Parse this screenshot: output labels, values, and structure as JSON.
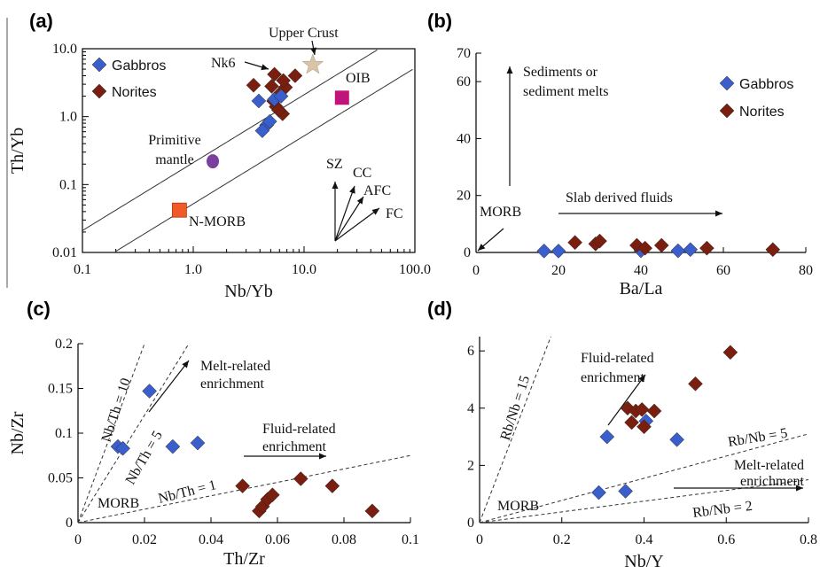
{
  "colors": {
    "gabbros": "#3a5fcd",
    "norites": "#7a1f0f",
    "primitive_mantle": "#7b3fa0",
    "nmorb": "#f05a28",
    "oib": "#c0147a",
    "upper_crust": "#d8c4a8"
  },
  "chart_data": [
    {
      "panel": "(a)",
      "type": "scatter",
      "scale": "log-log",
      "xlabel": "Nb/Yb",
      "ylabel": "Th/Yb",
      "xlim": [
        0.1,
        100
      ],
      "ylim": [
        0.01,
        10
      ],
      "xticks": [
        "0.1",
        "1.0",
        "10.0",
        "100.0"
      ],
      "yticks": [
        "0.01",
        "0.1",
        "1.0",
        "10.0"
      ],
      "legend": [
        "Gabbros",
        "Norites"
      ],
      "series": [
        {
          "name": "Gabbros",
          "points": [
            [
              3.9,
              1.7
            ],
            [
              5.4,
              1.8
            ],
            [
              6.2,
              2.0
            ],
            [
              4.6,
              0.75
            ],
            [
              4.9,
              0.85
            ],
            [
              4.2,
              0.62
            ]
          ]
        },
        {
          "name": "Norites",
          "points": [
            [
              5.4,
              4.2
            ],
            [
              3.5,
              2.9
            ],
            [
              5.1,
              2.8
            ],
            [
              6.8,
              2.7
            ],
            [
              8.3,
              4.0
            ],
            [
              5.9,
              2.1
            ],
            [
              5.3,
              1.7
            ],
            [
              5.6,
              1.4
            ],
            [
              6.4,
              1.1
            ],
            [
              5.9,
              1.25
            ],
            [
              6.5,
              3.4
            ]
          ]
        }
      ],
      "references": [
        {
          "label": "Primitive\nmantle",
          "x": 1.5,
          "y": 0.22
        },
        {
          "label": "N-MORB",
          "x": 0.75,
          "y": 0.042
        },
        {
          "label": "OIB",
          "x": 22,
          "y": 1.9
        },
        {
          "label": "Upper Crust",
          "x": 12,
          "y": 5.8
        }
      ],
      "annotations": [
        "Nk6",
        "SZ",
        "CC",
        "AFC",
        "FC"
      ]
    },
    {
      "panel": "(b)",
      "type": "scatter",
      "xlabel": "Ba/La",
      "ylabel": "",
      "xlim": [
        0,
        80
      ],
      "ylim": [
        0,
        70
      ],
      "xticks": [
        "0",
        "20",
        "40",
        "60",
        "80"
      ],
      "yticks": [
        "0",
        "20",
        "40",
        "60",
        "70"
      ],
      "legend": [
        "Gabbros",
        "Norites"
      ],
      "series": [
        {
          "name": "Gabbros",
          "points": [
            [
              16.5,
              0.5
            ],
            [
              20,
              0.5
            ],
            [
              40,
              0.6
            ],
            [
              49,
              0.6
            ],
            [
              52,
              1.0
            ]
          ]
        },
        {
          "name": "Norites",
          "points": [
            [
              24,
              3.5
            ],
            [
              29,
              3.0
            ],
            [
              30,
              4.0
            ],
            [
              39,
              2.5
            ],
            [
              41,
              1.5
            ],
            [
              45,
              2.5
            ],
            [
              56,
              1.5
            ],
            [
              72,
              1.0
            ]
          ]
        }
      ],
      "annotations": [
        "Sediments or\nsediment melts",
        "Slab derived fluids",
        "MORB"
      ]
    },
    {
      "panel": "(c)",
      "type": "scatter",
      "xlabel": "Th/Zr",
      "ylabel": "Nb/Zr",
      "xlim": [
        0,
        0.1
      ],
      "ylim": [
        0,
        0.2
      ],
      "xticks": [
        "0",
        "0.02",
        "0.04",
        "0.06",
        "0.08",
        "0.1"
      ],
      "yticks": [
        "0",
        "0.05",
        "0.1",
        "0.15",
        "0.2"
      ],
      "series": [
        {
          "name": "Gabbros",
          "points": [
            [
              0.0215,
              0.147
            ],
            [
              0.012,
              0.085
            ],
            [
              0.0135,
              0.083
            ],
            [
              0.0285,
              0.085
            ],
            [
              0.036,
              0.089
            ]
          ]
        },
        {
          "name": "Norites",
          "points": [
            [
              0.0495,
              0.041
            ],
            [
              0.0545,
              0.013
            ],
            [
              0.0555,
              0.018
            ],
            [
              0.057,
              0.026
            ],
            [
              0.0585,
              0.031
            ],
            [
              0.067,
              0.049
            ],
            [
              0.0765,
              0.041
            ],
            [
              0.0885,
              0.013
            ]
          ]
        }
      ],
      "lines": [
        "Nb/Th = 10",
        "Nb/Th = 5",
        "Nb/Th = 1"
      ],
      "annotations": [
        "Melt-related\nenrichment",
        "Fluid-related\nenrichment",
        "MORB"
      ]
    },
    {
      "panel": "(d)",
      "type": "scatter",
      "xlabel": "Nb/Y",
      "ylabel": "",
      "xlim": [
        0,
        0.8
      ],
      "ylim": [
        0,
        6.5
      ],
      "xticks": [
        "0",
        "0.2",
        "0.4",
        "0.6",
        "0.8"
      ],
      "yticks": [
        "0",
        "2",
        "4",
        "6"
      ],
      "series": [
        {
          "name": "Gabbros",
          "points": [
            [
              0.31,
              3.0
            ],
            [
              0.29,
              1.05
            ],
            [
              0.355,
              1.1
            ],
            [
              0.405,
              3.55
            ],
            [
              0.48,
              2.9
            ]
          ]
        },
        {
          "name": "Norites",
          "points": [
            [
              0.36,
              4.0
            ],
            [
              0.38,
              3.9
            ],
            [
              0.395,
              3.95
            ],
            [
              0.425,
              3.9
            ],
            [
              0.37,
              3.5
            ],
            [
              0.4,
              3.35
            ],
            [
              0.525,
              4.85
            ],
            [
              0.61,
              5.95
            ]
          ]
        }
      ],
      "lines": [
        "Rb/Nb = 15",
        "Rb/Nb = 5",
        "Rb/Nb = 2"
      ],
      "annotations": [
        "Fluid-related\nenrichment",
        "Melt-related\nenrichment",
        "MORB"
      ]
    }
  ]
}
